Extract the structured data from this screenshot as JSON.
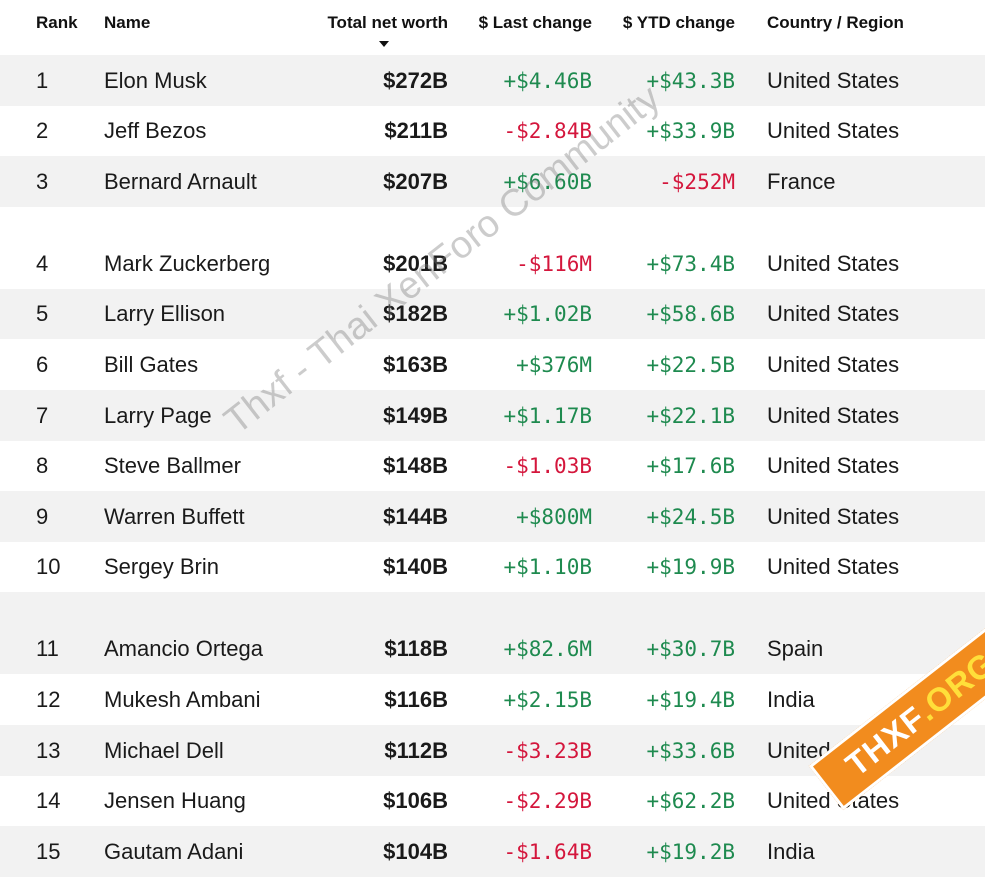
{
  "header": {
    "rank": "Rank",
    "name": "Name",
    "net_worth": "Total net worth",
    "last_change": "$ Last change",
    "ytd_change": "$ YTD change",
    "country": "Country / Region"
  },
  "rows": [
    {
      "rank": "1",
      "name": "Elon Musk",
      "net": "$272B",
      "last": "+$4.46B",
      "last_dir": "pos",
      "ytd": "+$43.3B",
      "ytd_dir": "pos",
      "country": "United States"
    },
    {
      "rank": "2",
      "name": "Jeff Bezos",
      "net": "$211B",
      "last": "-$2.84B",
      "last_dir": "neg",
      "ytd": "+$33.9B",
      "ytd_dir": "pos",
      "country": "United States"
    },
    {
      "rank": "3",
      "name": "Bernard Arnault",
      "net": "$207B",
      "last": "+$6.60B",
      "last_dir": "pos",
      "ytd": "-$252M",
      "ytd_dir": "neg",
      "country": "France"
    },
    {
      "rank": "4",
      "name": "Mark Zuckerberg",
      "net": "$201B",
      "last": "-$116M",
      "last_dir": "neg",
      "ytd": "+$73.4B",
      "ytd_dir": "pos",
      "country": "United States"
    },
    {
      "rank": "5",
      "name": "Larry Ellison",
      "net": "$182B",
      "last": "+$1.02B",
      "last_dir": "pos",
      "ytd": "+$58.6B",
      "ytd_dir": "pos",
      "country": "United States"
    },
    {
      "rank": "6",
      "name": "Bill Gates",
      "net": "$163B",
      "last": "+$376M",
      "last_dir": "pos",
      "ytd": "+$22.5B",
      "ytd_dir": "pos",
      "country": "United States"
    },
    {
      "rank": "7",
      "name": "Larry Page",
      "net": "$149B",
      "last": "+$1.17B",
      "last_dir": "pos",
      "ytd": "+$22.1B",
      "ytd_dir": "pos",
      "country": "United States"
    },
    {
      "rank": "8",
      "name": "Steve Ballmer",
      "net": "$148B",
      "last": "-$1.03B",
      "last_dir": "neg",
      "ytd": "+$17.6B",
      "ytd_dir": "pos",
      "country": "United States"
    },
    {
      "rank": "9",
      "name": "Warren Buffett",
      "net": "$144B",
      "last": "+$800M",
      "last_dir": "pos",
      "ytd": "+$24.5B",
      "ytd_dir": "pos",
      "country": "United States"
    },
    {
      "rank": "10",
      "name": "Sergey Brin",
      "net": "$140B",
      "last": "+$1.10B",
      "last_dir": "pos",
      "ytd": "+$19.9B",
      "ytd_dir": "pos",
      "country": "United States"
    },
    {
      "rank": "11",
      "name": "Amancio Ortega",
      "net": "$118B",
      "last": "+$82.6M",
      "last_dir": "pos",
      "ytd": "+$30.7B",
      "ytd_dir": "pos",
      "country": "Spain"
    },
    {
      "rank": "12",
      "name": "Mukesh Ambani",
      "net": "$116B",
      "last": "+$2.15B",
      "last_dir": "pos",
      "ytd": "+$19.4B",
      "ytd_dir": "pos",
      "country": "India"
    },
    {
      "rank": "13",
      "name": "Michael Dell",
      "net": "$112B",
      "last": "-$3.23B",
      "last_dir": "neg",
      "ytd": "+$33.6B",
      "ytd_dir": "pos",
      "country": "United States"
    },
    {
      "rank": "14",
      "name": "Jensen Huang",
      "net": "$106B",
      "last": "-$2.29B",
      "last_dir": "neg",
      "ytd": "+$62.2B",
      "ytd_dir": "pos",
      "country": "United States"
    },
    {
      "rank": "15",
      "name": "Gautam Adani",
      "net": "$104B",
      "last": "-$1.64B",
      "last_dir": "neg",
      "ytd": "+$19.2B",
      "ytd_dir": "pos",
      "country": "India"
    }
  ],
  "colors": {
    "positive": "#1e8a4f",
    "negative": "#d4163c",
    "row_shade": "#f2f2f2",
    "badge": "#f28c1e"
  },
  "watermark": "Thxf - Thai XenForo Community",
  "badge": {
    "main": "THXF",
    "suffix": ".ORG"
  }
}
